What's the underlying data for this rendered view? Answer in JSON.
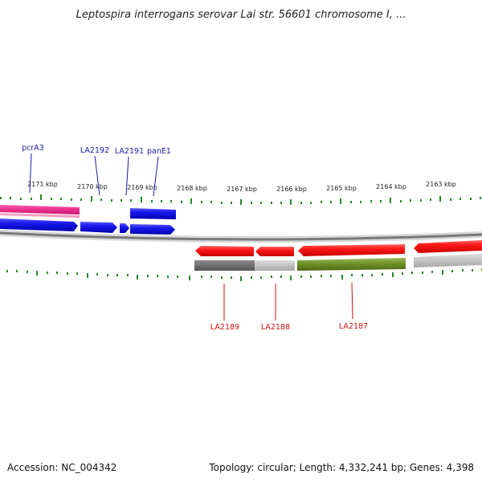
{
  "header": {
    "title": "Leptospira interrogans serovar Lai str. 56601 chromosome I, ..."
  },
  "footer": {
    "accession": "Accession: NC_004342",
    "summary": "Topology: circular; Length: 4,332,241 bp; Genes: 4,398"
  },
  "map": {
    "ticks": [
      "2171 kbp",
      "2170 kbp",
      "2169 kbp",
      "2168 kbp",
      "2167 kbp",
      "2166 kbp",
      "2165 kbp",
      "2164 kbp",
      "2163 kbp"
    ],
    "labels_top": [
      "pcrA3",
      "LA2192",
      "LA2191",
      "panE1"
    ],
    "labels_bottom": [
      "LA2189",
      "LA2188",
      "LA2187"
    ]
  },
  "colors": {
    "forward_gene": "#ee1111",
    "reverse_gene": "#1111dd",
    "pink_track": "#e8308a",
    "backbone": "#888888",
    "tick_marks": "#2a8a2a",
    "label_top": "#1a1aa8",
    "label_bottom": "#cc1111",
    "olive_feature": "#6b8e23",
    "gray_feature": "#8a8a8a"
  }
}
